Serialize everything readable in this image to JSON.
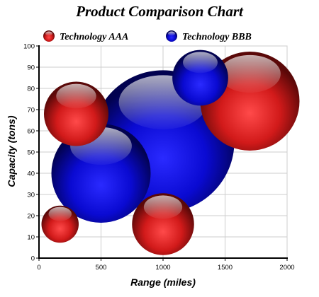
{
  "chart_data": {
    "type": "scatter",
    "title": "Product Comparison Chart",
    "xlabel": "Range (miles)",
    "ylabel": "Capacity (tons)",
    "xlim": [
      0,
      2000
    ],
    "ylim": [
      0,
      100
    ],
    "x_ticks": [
      0,
      500,
      1000,
      1500,
      2000
    ],
    "y_ticks": [
      0,
      10,
      20,
      30,
      40,
      50,
      60,
      70,
      80,
      90,
      100
    ],
    "grid": true,
    "legend_position": "top",
    "series": [
      {
        "name": "Technology AAA",
        "color": "#e0141e",
        "points": [
          {
            "x": 170,
            "y": 16,
            "size": 300
          },
          {
            "x": 300,
            "y": 68,
            "size": 520
          },
          {
            "x": 1000,
            "y": 16,
            "size": 500
          },
          {
            "x": 1700,
            "y": 74,
            "size": 800
          }
        ]
      },
      {
        "name": "Technology BBB",
        "color": "#0a14e0",
        "points": [
          {
            "x": 500,
            "y": 40,
            "size": 800
          },
          {
            "x": 1000,
            "y": 55,
            "size": 1150
          },
          {
            "x": 1300,
            "y": 85,
            "size": 450
          }
        ]
      }
    ]
  }
}
